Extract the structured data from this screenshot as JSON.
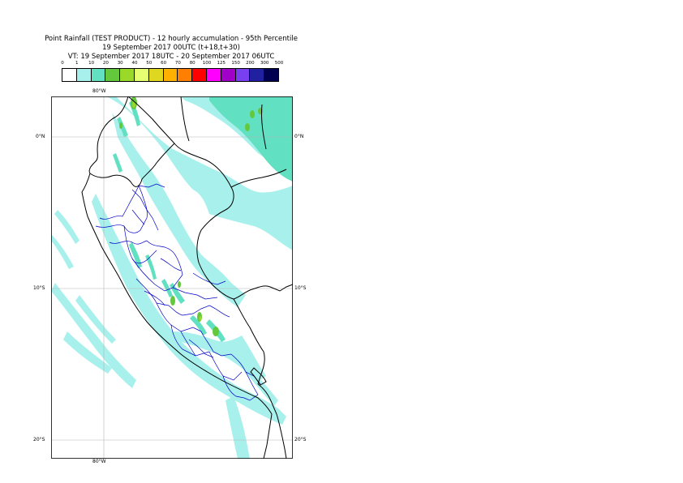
{
  "title": {
    "line1": "Point Rainfall (TEST PRODUCT) - 12 hourly accumulation - 95th Percentile",
    "line2": "19 September 2017 00UTC (t+18,t+30)",
    "line3": "VT: 19 September 2017 18UTC - 20 September 2017 06UTC"
  },
  "legend": {
    "thresholds": [
      "0",
      "1",
      "10",
      "20",
      "30",
      "40",
      "50",
      "60",
      "70",
      "80",
      "100",
      "125",
      "150",
      "200",
      "300",
      "500"
    ],
    "colors": [
      "#ffffff",
      "#a8f0ec",
      "#62e0c2",
      "#64c83c",
      "#9ad82a",
      "#e6ff72",
      "#e0d820",
      "#ffb000",
      "#ff7f00",
      "#ff0000",
      "#ff00ff",
      "#a000c8",
      "#7840f0",
      "#2020a0",
      "#000050"
    ]
  },
  "map": {
    "colors": {
      "land": "#ffffff",
      "rain_light": "#a8f0ec",
      "rain_moderate": "#62e0c2",
      "rain_heavy": "#64c83c",
      "rain_peak": "#9ad82a",
      "coast": "#000000",
      "admin": "#0000c8",
      "grid": "#b4b4b4"
    },
    "graticule": {
      "top_lon": "80°W",
      "bottom_lon": "80°W",
      "left_lat": [
        "0°N",
        "10°S",
        "20°S"
      ],
      "right_lat": [
        "0°N",
        "10°S",
        "20°S"
      ]
    }
  }
}
